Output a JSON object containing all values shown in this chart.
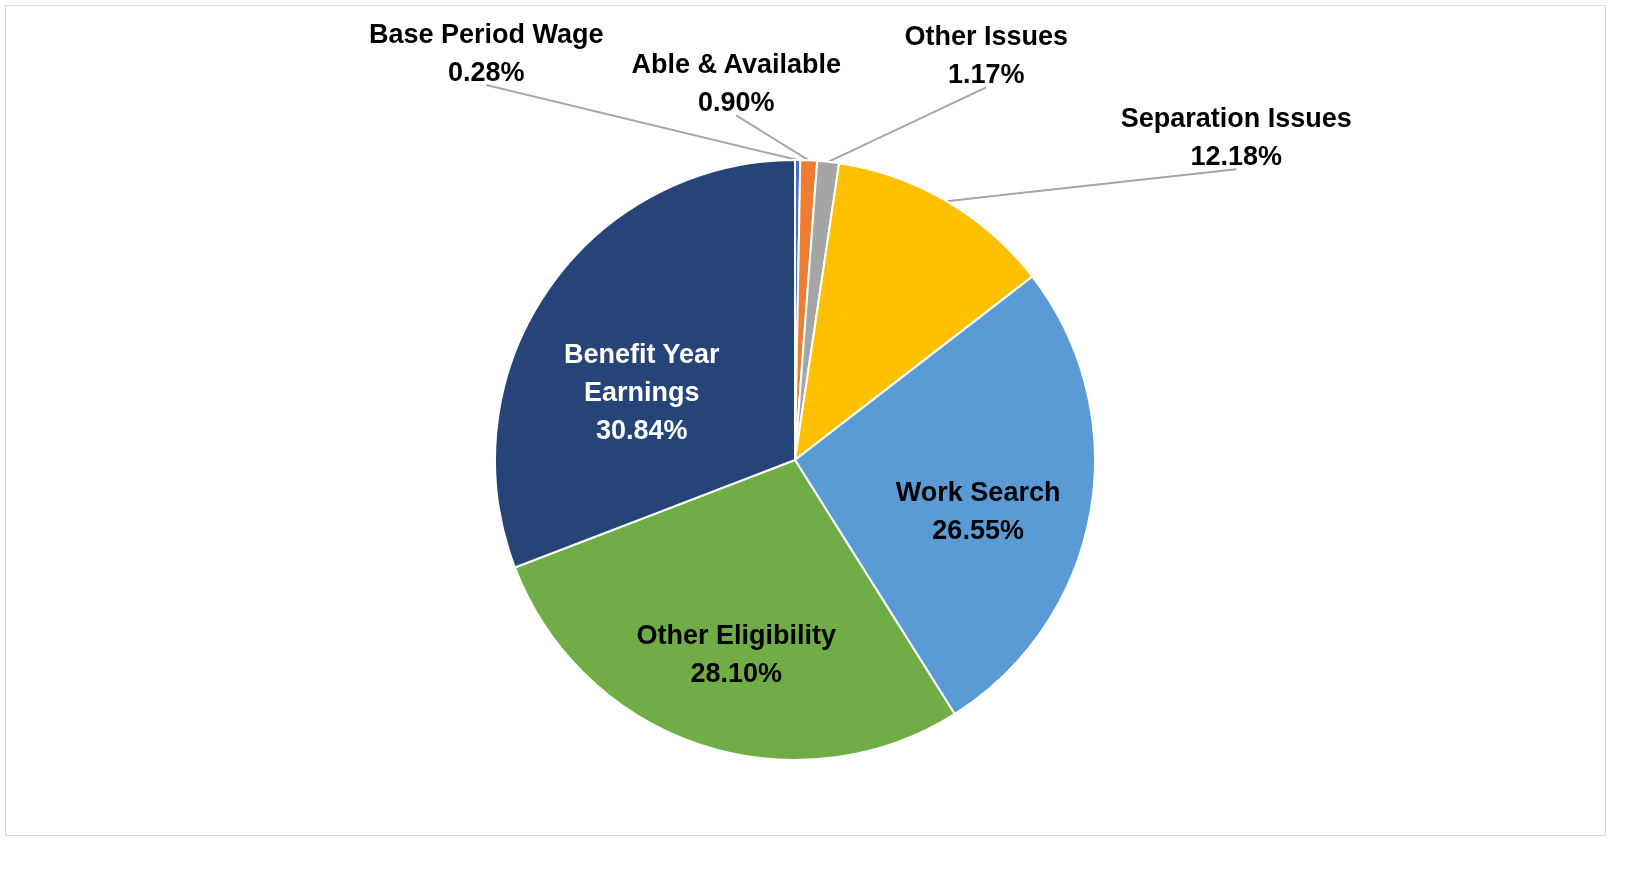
{
  "chart_data": {
    "type": "pie",
    "categories": [
      "Base Period Wage",
      "Able & Available",
      "Other Issues",
      "Separation Issues",
      "Work Search",
      "Other Eligibility",
      "Benefit Year Earnings"
    ],
    "values": [
      0.28,
      0.9,
      1.17,
      12.18,
      26.55,
      28.1,
      30.84
    ],
    "value_labels": [
      "0.28%",
      "0.90%",
      "1.17%",
      "12.18%",
      "26.55%",
      "28.10%",
      "30.84%"
    ],
    "colors": [
      "#4472c4",
      "#ed7d31",
      "#a5a5a5",
      "#ffc000",
      "#5b9bd5",
      "#70ad47",
      "#264478"
    ]
  }
}
